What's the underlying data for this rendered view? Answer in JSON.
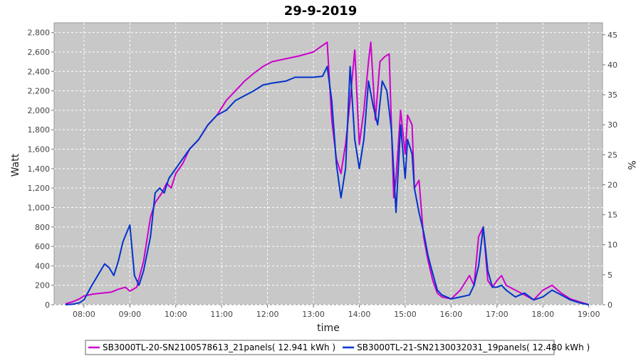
{
  "chart_data": {
    "type": "line",
    "title": "29-9-2019",
    "xlabel": "time",
    "ylabel": "Watt",
    "y2label": "%",
    "x_ticks": [
      "08:00",
      "09:00",
      "10:00",
      "11:00",
      "12:00",
      "13:00",
      "14:00",
      "15:00",
      "16:00",
      "17:00",
      "18:00",
      "19:00"
    ],
    "xlim_hours": [
      7.35,
      19.3
    ],
    "ylim": [
      0,
      2900
    ],
    "y_ticks": [
      0,
      200,
      400,
      600,
      800,
      1000,
      1200,
      1400,
      1600,
      1800,
      2000,
      2200,
      2400,
      2600,
      2800
    ],
    "y_tick_labels": [
      "0",
      "200",
      "400",
      "600",
      "800",
      "1,000",
      "1,200",
      "1,400",
      "1,600",
      "1,800",
      "2,000",
      "2,200",
      "2,400",
      "2,600",
      "2,800"
    ],
    "y2lim": [
      0,
      47
    ],
    "y2_ticks": [
      0,
      5,
      10,
      15,
      20,
      25,
      30,
      35,
      40,
      45
    ],
    "y2_tick_labels": [
      "0",
      "5",
      "10",
      "15",
      "20",
      "25",
      "30",
      "35",
      "40",
      "45"
    ],
    "grid": true,
    "legend_position": "bottom",
    "series": [
      {
        "name": "SB3000TL-20-SN2100578613_21panels( 12.941 kWh )",
        "color": "#cc00cc",
        "x": [
          7.6,
          7.75,
          7.9,
          8.0,
          8.2,
          8.4,
          8.6,
          8.75,
          8.9,
          9.0,
          9.15,
          9.3,
          9.45,
          9.55,
          9.7,
          9.8,
          9.9,
          10.0,
          10.15,
          10.3,
          10.5,
          10.7,
          10.9,
          11.1,
          11.3,
          11.5,
          11.7,
          11.9,
          12.1,
          12.4,
          12.7,
          13.0,
          13.15,
          13.3,
          13.4,
          13.5,
          13.6,
          13.7,
          13.8,
          13.9,
          14.0,
          14.1,
          14.2,
          14.25,
          14.35,
          14.45,
          14.55,
          14.65,
          14.75,
          14.8,
          14.9,
          15.0,
          15.05,
          15.15,
          15.2,
          15.3,
          15.4,
          15.5,
          15.6,
          15.7,
          15.8,
          16.0,
          16.2,
          16.4,
          16.5,
          16.6,
          16.7,
          16.8,
          16.9,
          17.0,
          17.1,
          17.2,
          17.4,
          17.6,
          17.8,
          18.0,
          18.2,
          18.4,
          18.6,
          18.8,
          19.0
        ],
        "y": [
          10,
          30,
          60,
          90,
          110,
          120,
          130,
          160,
          180,
          140,
          180,
          450,
          900,
          1050,
          1150,
          1250,
          1200,
          1350,
          1450,
          1600,
          1700,
          1850,
          1950,
          2100,
          2200,
          2300,
          2380,
          2450,
          2500,
          2530,
          2560,
          2600,
          2650,
          2700,
          1900,
          1500,
          1350,
          1650,
          2100,
          2620,
          1650,
          2000,
          2500,
          2700,
          1900,
          2500,
          2550,
          2580,
          1100,
          1300,
          2000,
          1550,
          1950,
          1850,
          1200,
          1280,
          700,
          450,
          250,
          120,
          80,
          60,
          150,
          300,
          200,
          700,
          800,
          250,
          180,
          250,
          300,
          200,
          150,
          100,
          50,
          150,
          200,
          120,
          60,
          30,
          0
        ]
      },
      {
        "name": "SB3000TL-21-SN2130032031_19panels( 12.480 kWh )",
        "color": "#0033cc",
        "x": [
          7.6,
          7.75,
          7.9,
          8.0,
          8.15,
          8.3,
          8.45,
          8.55,
          8.65,
          8.75,
          8.85,
          9.0,
          9.1,
          9.2,
          9.3,
          9.45,
          9.55,
          9.65,
          9.75,
          9.85,
          10.0,
          10.15,
          10.3,
          10.5,
          10.7,
          10.9,
          11.1,
          11.3,
          11.5,
          11.7,
          11.9,
          12.1,
          12.4,
          12.6,
          13.0,
          13.2,
          13.3,
          13.4,
          13.5,
          13.6,
          13.7,
          13.8,
          13.9,
          14.0,
          14.1,
          14.2,
          14.3,
          14.4,
          14.5,
          14.6,
          14.7,
          14.8,
          14.9,
          15.0,
          15.05,
          15.15,
          15.2,
          15.3,
          15.4,
          15.5,
          15.6,
          15.7,
          15.8,
          16.0,
          16.2,
          16.4,
          16.5,
          16.6,
          16.7,
          16.8,
          16.9,
          17.0,
          17.1,
          17.2,
          17.4,
          17.6,
          17.8,
          18.0,
          18.2,
          18.4,
          18.6,
          18.8,
          19.0
        ],
        "y": [
          0,
          5,
          20,
          50,
          180,
          300,
          420,
          380,
          300,
          450,
          650,
          820,
          300,
          200,
          350,
          700,
          1150,
          1200,
          1150,
          1300,
          1400,
          1500,
          1600,
          1700,
          1850,
          1950,
          2000,
          2100,
          2150,
          2200,
          2260,
          2280,
          2300,
          2340,
          2340,
          2350,
          2450,
          2100,
          1450,
          1100,
          1400,
          2450,
          1700,
          1400,
          1700,
          2300,
          2050,
          1850,
          2300,
          2200,
          1800,
          950,
          1850,
          1300,
          1700,
          1550,
          1200,
          950,
          750,
          500,
          320,
          150,
          100,
          60,
          80,
          100,
          200,
          400,
          800,
          350,
          180,
          180,
          200,
          150,
          80,
          120,
          50,
          80,
          150,
          100,
          50,
          20,
          0
        ]
      }
    ]
  }
}
